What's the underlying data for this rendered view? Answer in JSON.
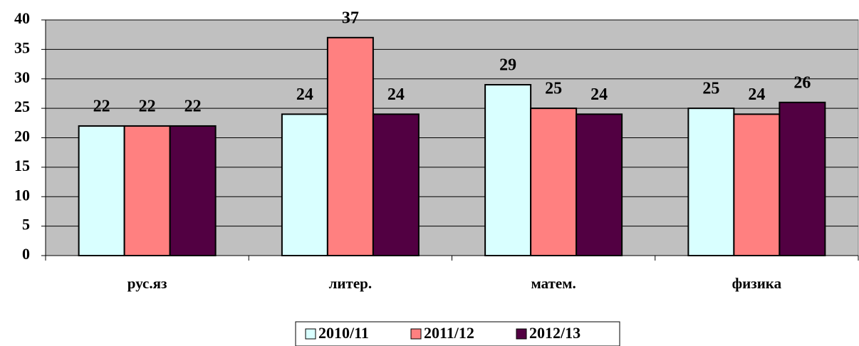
{
  "chart_data": {
    "type": "bar",
    "categories": [
      "рус.яз",
      "литер.",
      "матем.",
      "физика"
    ],
    "series": [
      {
        "name": "2010/11",
        "color": "#d9ffff",
        "values": [
          22,
          24,
          29,
          25
        ]
      },
      {
        "name": "2011/12",
        "color": "#ff8080",
        "values": [
          22,
          37,
          25,
          24
        ]
      },
      {
        "name": "2012/13",
        "color": "#520042",
        "values": [
          22,
          24,
          24,
          26
        ]
      }
    ],
    "ylim": [
      0,
      40
    ],
    "yticks": [
      0,
      5,
      10,
      15,
      20,
      25,
      30,
      35,
      40
    ],
    "grid": true,
    "plot_background": "#c0c0c0",
    "legend": "bottom"
  }
}
